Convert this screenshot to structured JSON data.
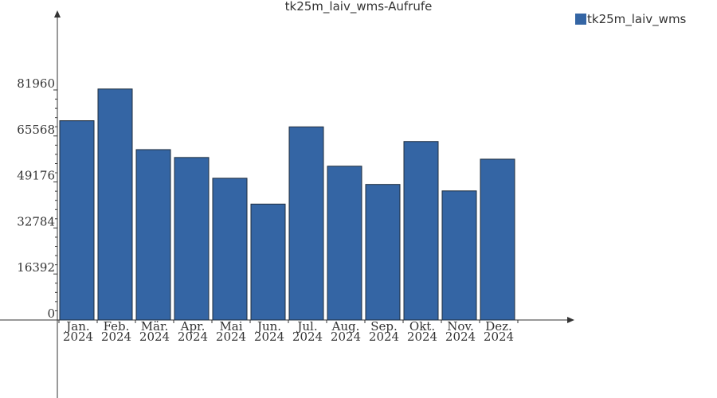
{
  "chart_data": {
    "type": "bar",
    "title": "tk25m_laiv_wms-Aufrufe",
    "xlabel": "",
    "ylabel": "",
    "categories": [
      [
        "Jan.",
        "2024"
      ],
      [
        "Feb.",
        "2024"
      ],
      [
        "Mär.",
        "2024"
      ],
      [
        "Apr.",
        "2024"
      ],
      [
        "Mai",
        "2024"
      ],
      [
        "Jun.",
        "2024"
      ],
      [
        "Jul.",
        "2024"
      ],
      [
        "Aug.",
        "2024"
      ],
      [
        "Sep.",
        "2024"
      ],
      [
        "Okt.",
        "2024"
      ],
      [
        "Nov.",
        "2024"
      ],
      [
        "Dez.",
        "2024"
      ]
    ],
    "series": [
      {
        "name": "tk25m_laiv_wms",
        "color": "#3465a4",
        "values": [
          71000,
          82300,
          60700,
          57900,
          50500,
          41300,
          68800,
          54800,
          48300,
          63600,
          46000,
          57300
        ]
      }
    ],
    "y_ticks": [
      {
        "value": 0,
        "label": "0"
      },
      {
        "value": 16392,
        "label": "16392"
      },
      {
        "value": 32784,
        "label": "32784"
      },
      {
        "value": 49176,
        "label": "49176"
      },
      {
        "value": 65568,
        "label": "65568"
      },
      {
        "value": 81960,
        "label": "81960"
      }
    ],
    "grid": false,
    "legend": "top-right"
  }
}
